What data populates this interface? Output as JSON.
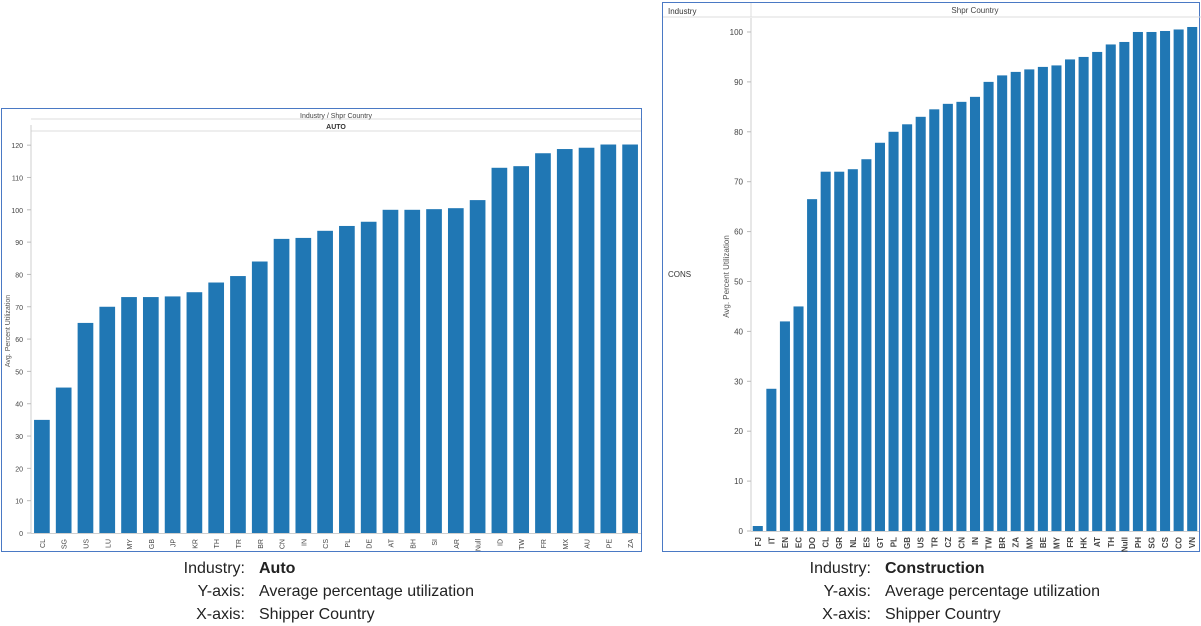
{
  "chart_data": [
    {
      "type": "bar",
      "header_title": "Industry  /  Shpr Country",
      "header_subtitle": "AUTO",
      "ylabel": "Avg. Percent Utilization",
      "ylim": [
        0,
        125
      ],
      "yticks": [
        0,
        10,
        20,
        30,
        40,
        50,
        60,
        70,
        80,
        90,
        100,
        110,
        120
      ],
      "categories": [
        "CL",
        "SG",
        "US",
        "LU",
        "MY",
        "GB",
        "JP",
        "KR",
        "TH",
        "TR",
        "BR",
        "CN",
        "IN",
        "CS",
        "PL",
        "DE",
        "AT",
        "BH",
        "SI",
        "AR",
        "Null",
        "ID",
        "TW",
        "FR",
        "MX",
        "AU",
        "PE",
        "ZA"
      ],
      "values": [
        35,
        45,
        65,
        70,
        73,
        73,
        73.2,
        74.5,
        77.5,
        79.5,
        84,
        91,
        91.3,
        93.5,
        95,
        96.3,
        100,
        100,
        100.2,
        100.5,
        103,
        113,
        113.5,
        117.5,
        118.8,
        119.2,
        120.2,
        120.2
      ],
      "color": "#2077b4",
      "grid": false,
      "legend": "none"
    },
    {
      "type": "bar",
      "header_left": "Industry",
      "header_title": "Shpr Country",
      "row_label": "CONS",
      "ylabel": "Avg. Percent Utilization",
      "ylim": [
        0,
        102
      ],
      "yticks": [
        0,
        10,
        20,
        30,
        40,
        50,
        60,
        70,
        80,
        90,
        100
      ],
      "categories": [
        "FJ",
        "IT",
        "EN",
        "EC",
        "DO",
        "CL",
        "GR",
        "NL",
        "ES",
        "GT",
        "PL",
        "GB",
        "US",
        "TR",
        "CZ",
        "CN",
        "IN",
        "TW",
        "BR",
        "ZA",
        "MX",
        "BE",
        "MY",
        "FR",
        "HK",
        "AT",
        "TH",
        "Null",
        "PH",
        "SG",
        "CS",
        "CO",
        "VN"
      ],
      "values": [
        1,
        28.5,
        42,
        45,
        66.5,
        72,
        72,
        72.5,
        74.5,
        77.8,
        80,
        81.5,
        83,
        84.5,
        85.6,
        86,
        87,
        90,
        91.3,
        92,
        92.5,
        93,
        93.3,
        94.5,
        95,
        96,
        97.5,
        98,
        100,
        100,
        100.2,
        100.5,
        101
      ],
      "color": "#2077b4",
      "grid": false,
      "legend": "none"
    }
  ],
  "captions": [
    {
      "industry_key": "Industry:",
      "industry_val": "Auto",
      "y_key": "Y-axis:",
      "y_val": "Average percentage utilization",
      "x_key": "X-axis:",
      "x_val": "Shipper Country"
    },
    {
      "industry_key": "Industry:",
      "industry_val": "Construction",
      "y_key": "Y-axis:",
      "y_val": "Average percentage utilization",
      "x_key": "X-axis:",
      "x_val": "Shipper Country"
    }
  ]
}
